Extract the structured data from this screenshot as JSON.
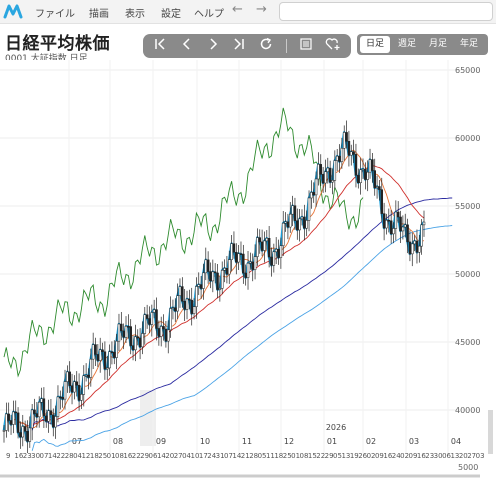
{
  "menu": {
    "items": [
      "ファイル",
      "描画",
      "表示",
      "設定",
      "ヘルプ"
    ],
    "back_icon": "arrow-left-icon",
    "forward_icon": "arrow-right-icon",
    "search_placeholder": ""
  },
  "header": {
    "title": "日経平均株価",
    "subtitle": "0001 大証指数 日足"
  },
  "toolbar": {
    "buttons": [
      "first-icon",
      "prev-icon",
      "next-icon",
      "last-icon",
      "refresh-icon",
      "list-icon",
      "favorite-add-icon"
    ]
  },
  "periods": {
    "tabs": [
      "日足",
      "週足",
      "月足",
      "年足"
    ],
    "active": 0
  },
  "colors": {
    "candle_blue": "#1aa3e0",
    "ma_short": "#e8763a",
    "ma_mid": "#d0302c",
    "ma_long": "#2a2aa0",
    "ichimoku_span": "#4aa3e6",
    "chikou": "#2e8b2e"
  },
  "chart_data": {
    "type": "line",
    "y_ticks": [
      "65000",
      "60000",
      "55000",
      "50000",
      "45000",
      "40000"
    ],
    "year_label": "2026",
    "month_labels": [
      "07",
      "08",
      "09",
      "10",
      "11",
      "12",
      "01",
      "02",
      "03",
      "04"
    ],
    "day_labels": [
      "9",
      "16",
      "23",
      "30",
      "07",
      "14",
      "22",
      "28",
      "04",
      "12",
      "18",
      "25",
      "01",
      "08",
      "16",
      "22",
      "29",
      "06",
      "14",
      "20",
      "27",
      "04",
      "10",
      "17",
      "24",
      "31",
      "07",
      "14",
      "21",
      "28",
      "05",
      "11",
      "18",
      "25",
      "01",
      "08",
      "15",
      "22",
      "29",
      "05",
      "13",
      "19",
      "26",
      "02",
      "09",
      "16",
      "24",
      "02",
      "09",
      "16",
      "23",
      "30",
      "06",
      "13",
      "20",
      "27",
      "03"
    ],
    "volume_tick": "5000",
    "ylim": [
      40000,
      66000
    ]
  }
}
